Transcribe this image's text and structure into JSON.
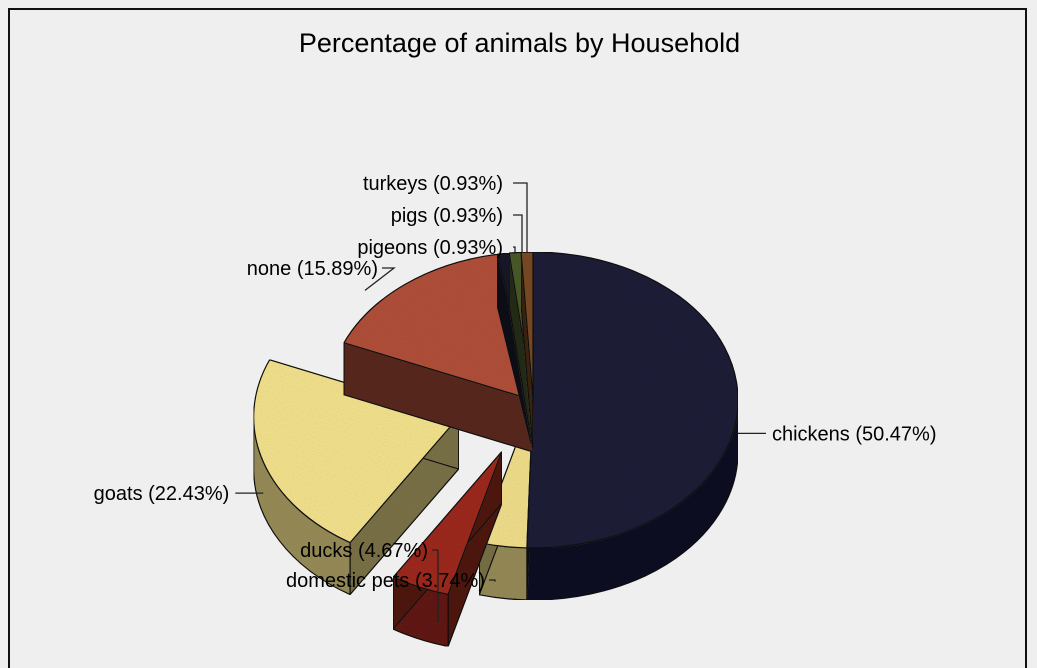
{
  "chart_data": {
    "type": "pie",
    "style": "3d-exploded",
    "title": "Percentage of animals by Household",
    "slices": [
      {
        "name": "chickens",
        "value": 50.47,
        "label": "chickens (50.47%)",
        "color": "#1c1c38",
        "exploded": false
      },
      {
        "name": "domestic pets",
        "value": 3.74,
        "label": "domestic pets (3.74%)",
        "color": "#f2e08c",
        "exploded": false
      },
      {
        "name": "ducks",
        "value": 4.67,
        "label": "ducks (4.67%)",
        "color": "#9e2a1e",
        "exploded": true
      },
      {
        "name": "goats",
        "value": 22.43,
        "label": "goats (22.43%)",
        "color": "#f5e48e",
        "exploded": true
      },
      {
        "name": "none",
        "value": 15.89,
        "label": "none (15.89%)",
        "color": "#b2503a",
        "exploded": false
      },
      {
        "name": "pigeons",
        "value": 0.93,
        "label": "pigeons (0.93%)",
        "color": "#16162a",
        "exploded": false
      },
      {
        "name": "pigs",
        "value": 0.93,
        "label": "pigs (0.93%)",
        "color": "#4a5a2a",
        "exploded": false
      },
      {
        "name": "turkeys",
        "value": 0.93,
        "label": "turkeys (0.93%)",
        "color": "#7a4a22",
        "exploded": false
      }
    ]
  }
}
